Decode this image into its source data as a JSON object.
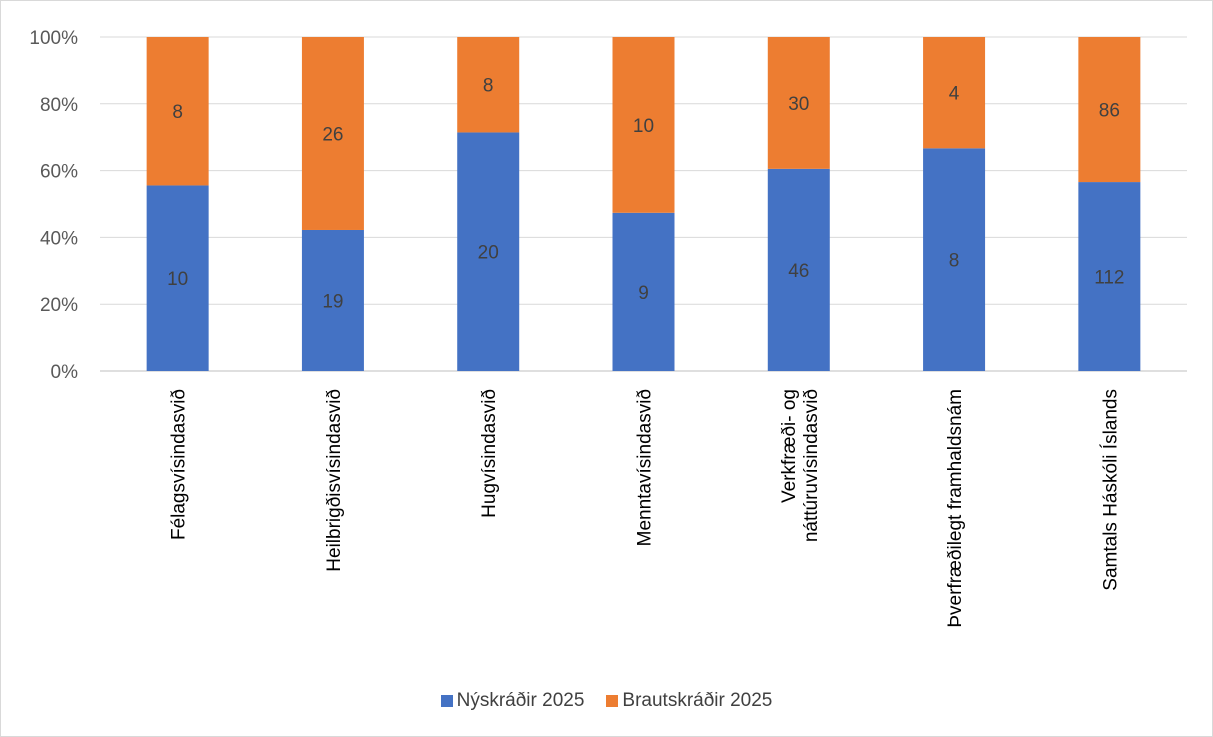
{
  "chart_data": {
    "type": "bar",
    "stacked": "percent",
    "categories": [
      "Félagsvísindasvið",
      "Heilbrigðisvísindasvið",
      "Hugvísindasvið",
      "Menntavísindasvið",
      "Verkfræði- og náttúruvísindasvið",
      "Þverfræðilegt framhaldsnám",
      "Samtals Háskóli Íslands"
    ],
    "series": [
      {
        "name": "Nýskráðir 2025",
        "values": [
          10,
          19,
          20,
          9,
          46,
          8,
          112
        ],
        "color": "#4472C4"
      },
      {
        "name": "Brautskráðir 2025",
        "values": [
          8,
          26,
          8,
          10,
          30,
          4,
          86
        ],
        "color": "#ED7D31"
      }
    ],
    "ylim": [
      0,
      100
    ],
    "yticks": [
      "0%",
      "20%",
      "40%",
      "60%",
      "80%",
      "100%"
    ],
    "grid": true,
    "legend_position": "bottom"
  }
}
